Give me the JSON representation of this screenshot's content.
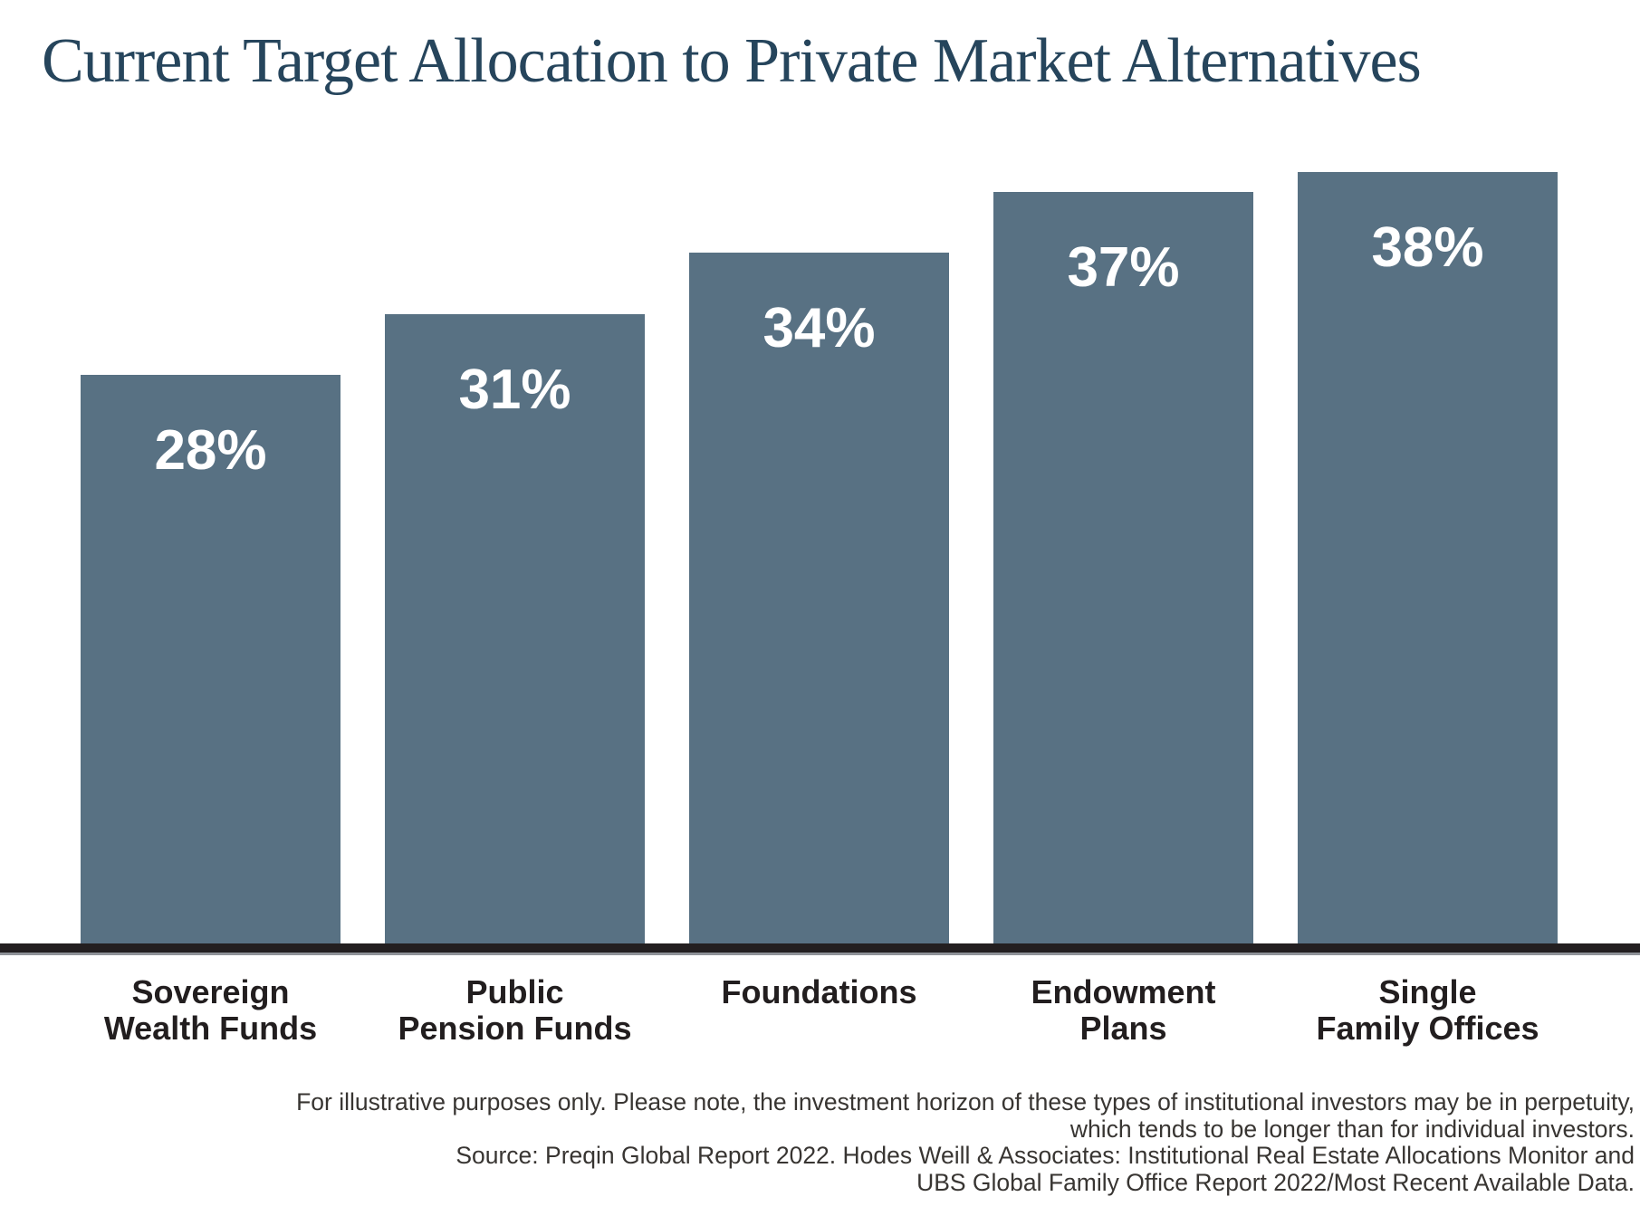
{
  "title": "Current Target Allocation to Private Market Alternatives",
  "chart_data": {
    "type": "bar",
    "title": "Current Target Allocation to Private Market Alternatives",
    "categories": [
      "Sovereign Wealth Funds",
      "Public Pension Funds",
      "Foundations",
      "Endowment Plans",
      "Single Family Offices"
    ],
    "category_lines": [
      [
        "Sovereign",
        "Wealth Funds"
      ],
      [
        "Public",
        "Pension Funds"
      ],
      [
        "Foundations"
      ],
      [
        "Endowment",
        "Plans"
      ],
      [
        "Single",
        "Family Offices"
      ]
    ],
    "values": [
      28,
      31,
      34,
      37,
      38
    ],
    "data_labels": [
      "28%",
      "31%",
      "34%",
      "37%",
      "38%"
    ],
    "unit": "%",
    "ylim": [
      0,
      40
    ],
    "grid": false,
    "legend": false,
    "bar_color": "#587183",
    "value_label_color": "#ffffff",
    "axis_color": "#231f20",
    "title_color": "#26455c"
  },
  "footnote": {
    "lines": [
      "For illustrative purposes only. Please note, the investment horizon of these types of institutional investors may be in perpetuity,",
      "which tends to be longer than for individual investors.",
      "Source: Preqin Global Report 2022. Hodes Weill & Associates: Institutional Real Estate Allocations Monitor and",
      "UBS Global Family Office Report 2022/Most Recent Available Data."
    ]
  }
}
